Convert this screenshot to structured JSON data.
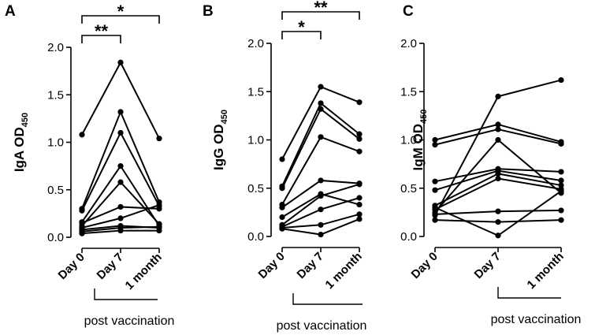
{
  "chart_data": [
    {
      "type": "line",
      "panel_label": "A",
      "ylabel": "IgA OD",
      "ylabel_sub": "450",
      "categories": [
        "Day 0",
        "Day 7",
        "1 month"
      ],
      "ylim": [
        0,
        2.0
      ],
      "yticks": [
        "0.0",
        "0.5",
        "1.0",
        "1.5",
        "2.0"
      ],
      "xlabel_note": "post vaccination",
      "series": [
        {
          "values": [
            1.08,
            1.84,
            1.04
          ]
        },
        {
          "values": [
            0.3,
            1.32,
            0.37
          ]
        },
        {
          "values": [
            0.28,
            1.1,
            0.33
          ]
        },
        {
          "values": [
            0.16,
            0.75,
            0.12
          ]
        },
        {
          "values": [
            0.12,
            0.58,
            0.14
          ]
        },
        {
          "values": [
            0.15,
            0.32,
            0.3
          ]
        },
        {
          "values": [
            0.1,
            0.2,
            0.34
          ]
        },
        {
          "values": [
            0.08,
            0.12,
            0.1
          ]
        },
        {
          "values": [
            0.06,
            0.1,
            0.11
          ]
        },
        {
          "values": [
            0.04,
            0.07,
            0.07
          ]
        }
      ],
      "significance": [
        {
          "from": 0,
          "to": 1,
          "label": "**"
        },
        {
          "from": 0,
          "to": 2,
          "label": "*"
        }
      ]
    },
    {
      "type": "line",
      "panel_label": "B",
      "ylabel": "IgG OD",
      "ylabel_sub": "450",
      "categories": [
        "Day 0",
        "Day 7",
        "1 month"
      ],
      "ylim": [
        0,
        2.0
      ],
      "yticks": [
        "0.0",
        "0.5",
        "1.0",
        "1.5",
        "2.0"
      ],
      "xlabel_note": "post vaccination",
      "series": [
        {
          "values": [
            0.8,
            1.55,
            1.39
          ]
        },
        {
          "values": [
            0.52,
            1.38,
            1.06
          ]
        },
        {
          "values": [
            0.5,
            1.32,
            1.01
          ]
        },
        {
          "values": [
            0.33,
            1.03,
            0.88
          ]
        },
        {
          "values": [
            0.3,
            0.58,
            0.55
          ]
        },
        {
          "values": [
            0.2,
            0.44,
            0.33
          ]
        },
        {
          "values": [
            0.12,
            0.42,
            0.54
          ]
        },
        {
          "values": [
            0.1,
            0.28,
            0.4
          ]
        },
        {
          "values": [
            0.09,
            0.12,
            0.23
          ]
        },
        {
          "values": [
            0.08,
            0.02,
            0.18
          ]
        }
      ],
      "significance": [
        {
          "from": 0,
          "to": 1,
          "label": "*"
        },
        {
          "from": 0,
          "to": 2,
          "label": "**"
        }
      ]
    },
    {
      "type": "line",
      "panel_label": "C",
      "ylabel": "IgM OD",
      "ylabel_sub": "450",
      "categories": [
        "Day 0",
        "Day 7",
        "1 month"
      ],
      "ylim": [
        0,
        2.0
      ],
      "yticks": [
        "0.0",
        "0.5",
        "1.0",
        "1.5",
        "2.0"
      ],
      "xlabel_note": "post vaccination",
      "series": [
        {
          "values": [
            0.22,
            1.45,
            1.62
          ]
        },
        {
          "values": [
            1.0,
            1.16,
            0.98
          ]
        },
        {
          "values": [
            0.95,
            1.11,
            0.96
          ]
        },
        {
          "values": [
            0.57,
            0.7,
            0.67
          ]
        },
        {
          "values": [
            0.48,
            0.68,
            0.58
          ]
        },
        {
          "values": [
            0.32,
            0.65,
            0.53
          ]
        },
        {
          "values": [
            0.28,
            0.6,
            0.49
          ]
        },
        {
          "values": [
            0.25,
            1.0,
            0.45
          ]
        },
        {
          "values": [
            0.23,
            0.26,
            0.27
          ]
        },
        {
          "values": [
            0.17,
            0.15,
            0.17
          ]
        },
        {
          "values": [
            0.3,
            0.01,
            0.47
          ]
        }
      ],
      "significance": []
    }
  ]
}
